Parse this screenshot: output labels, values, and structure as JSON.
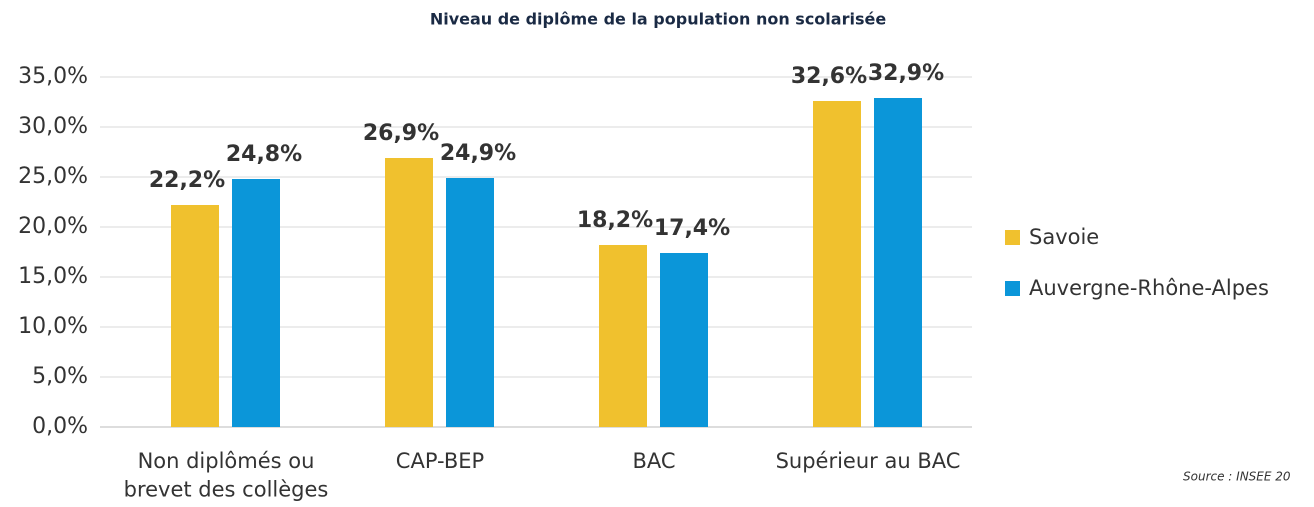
{
  "chart_data": {
    "type": "bar",
    "title": "Niveau de diplôme de la population non scolarisée",
    "categories": [
      "Non diplômés ou\nbrevet des collèges",
      "CAP-BEP",
      "BAC",
      "Supérieur au BAC"
    ],
    "series": [
      {
        "name": "Savoie",
        "color": "#f0c12e",
        "values": [
          22.2,
          26.9,
          18.2,
          32.6
        ],
        "value_labels": [
          "22,2%",
          "26,9%",
          "18,2%",
          "32,6%"
        ]
      },
      {
        "name": "Auvergne-Rhône-Alpes",
        "color": "#0b96d9",
        "values": [
          24.8,
          24.9,
          17.4,
          32.9
        ],
        "value_labels": [
          "24,8%",
          "24,9%",
          "17,4%",
          "32,9%"
        ]
      }
    ],
    "ylim": [
      0,
      35
    ],
    "yticks": [
      {
        "value": 0,
        "label": "0,0%"
      },
      {
        "value": 5,
        "label": "5,0%"
      },
      {
        "value": 10,
        "label": "10,0%"
      },
      {
        "value": 15,
        "label": "15,0%"
      },
      {
        "value": 20,
        "label": "20,0%"
      },
      {
        "value": 25,
        "label": "25,0%"
      },
      {
        "value": 30,
        "label": "30,0%"
      },
      {
        "value": 35,
        "label": "35,0%"
      }
    ],
    "grid": true,
    "legend": "right",
    "source": "Source : INSEE 20"
  }
}
